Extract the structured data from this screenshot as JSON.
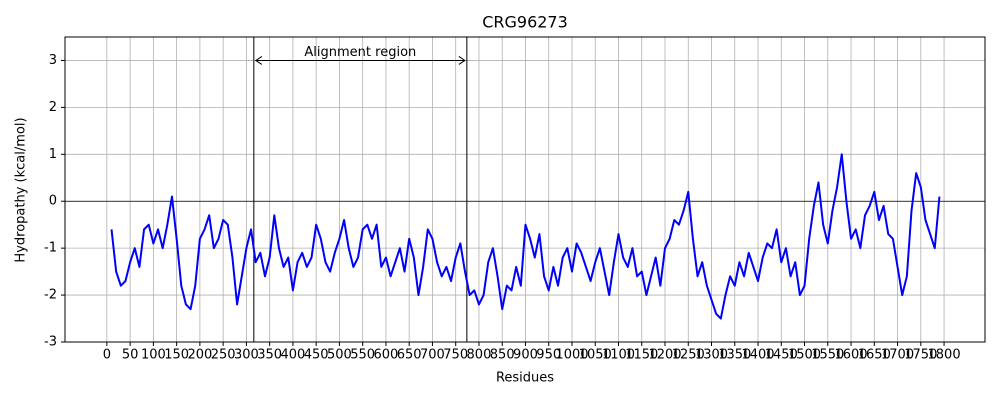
{
  "chart_data": {
    "type": "line",
    "title": "CRG96273",
    "xlabel": "Residues",
    "ylabel": "Hydropathy (kcal/mol)",
    "annotation": "Alignment region",
    "alignment_region": [
      316,
      774
    ],
    "arrow_y": 3,
    "hline": 0,
    "xlim": [
      -90,
      1888
    ],
    "ylim": [
      -3,
      3.5
    ],
    "grid": true,
    "xticks": [
      0,
      50,
      100,
      150,
      200,
      250,
      300,
      350,
      400,
      450,
      500,
      550,
      600,
      650,
      700,
      750,
      800,
      850,
      900,
      950,
      1000,
      1050,
      1100,
      1150,
      1200,
      1250,
      1300,
      1350,
      1400,
      1450,
      1500,
      1550,
      1600,
      1650,
      1700,
      1750,
      1800
    ],
    "yticks": [
      -3,
      -2,
      -1,
      0,
      1,
      2,
      3
    ],
    "x": [
      10,
      20,
      30,
      40,
      50,
      60,
      70,
      80,
      90,
      100,
      110,
      120,
      130,
      140,
      150,
      160,
      170,
      180,
      190,
      200,
      210,
      220,
      230,
      240,
      250,
      260,
      270,
      280,
      290,
      300,
      310,
      320,
      330,
      340,
      350,
      360,
      370,
      380,
      390,
      400,
      410,
      420,
      430,
      440,
      450,
      460,
      470,
      480,
      490,
      500,
      510,
      520,
      530,
      540,
      550,
      560,
      570,
      580,
      590,
      600,
      610,
      620,
      630,
      640,
      650,
      660,
      670,
      680,
      690,
      700,
      710,
      720,
      730,
      740,
      750,
      760,
      770,
      780,
      790,
      800,
      810,
      820,
      830,
      840,
      850,
      860,
      870,
      880,
      890,
      900,
      910,
      920,
      930,
      940,
      950,
      960,
      970,
      980,
      990,
      1000,
      1010,
      1020,
      1030,
      1040,
      1050,
      1060,
      1070,
      1080,
      1090,
      1100,
      1110,
      1120,
      1130,
      1140,
      1150,
      1160,
      1170,
      1180,
      1190,
      1200,
      1210,
      1220,
      1230,
      1240,
      1250,
      1260,
      1270,
      1280,
      1290,
      1300,
      1310,
      1320,
      1330,
      1340,
      1350,
      1360,
      1370,
      1380,
      1390,
      1400,
      1410,
      1420,
      1430,
      1440,
      1450,
      1460,
      1470,
      1480,
      1490,
      1500,
      1510,
      1520,
      1530,
      1540,
      1550,
      1560,
      1570,
      1580,
      1590,
      1600,
      1610,
      1620,
      1630,
      1640,
      1650,
      1660,
      1670,
      1680,
      1690,
      1700,
      1710,
      1720,
      1730,
      1740,
      1750,
      1760,
      1770,
      1780,
      1790
    ],
    "series": [
      {
        "color": "#0000ff",
        "values": [
          -0.6,
          -1.5,
          -1.8,
          -1.7,
          -1.3,
          -1.0,
          -1.4,
          -0.6,
          -0.5,
          -0.9,
          -0.6,
          -1.0,
          -0.5,
          0.1,
          -0.8,
          -1.8,
          -2.2,
          -2.3,
          -1.8,
          -0.8,
          -0.6,
          -0.3,
          -1.0,
          -0.8,
          -0.4,
          -0.5,
          -1.2,
          -2.2,
          -1.6,
          -1.0,
          -0.6,
          -1.3,
          -1.1,
          -1.6,
          -1.2,
          -0.3,
          -1.0,
          -1.4,
          -1.2,
          -1.9,
          -1.3,
          -1.1,
          -1.4,
          -1.2,
          -0.5,
          -0.8,
          -1.3,
          -1.5,
          -1.1,
          -0.8,
          -0.4,
          -1.0,
          -1.4,
          -1.2,
          -0.6,
          -0.5,
          -0.8,
          -0.5,
          -1.4,
          -1.2,
          -1.6,
          -1.3,
          -1.0,
          -1.5,
          -0.8,
          -1.2,
          -2.0,
          -1.4,
          -0.6,
          -0.8,
          -1.3,
          -1.6,
          -1.4,
          -1.7,
          -1.2,
          -0.9,
          -1.5,
          -2.0,
          -1.9,
          -2.2,
          -2.0,
          -1.3,
          -1.0,
          -1.6,
          -2.3,
          -1.8,
          -1.9,
          -1.4,
          -1.8,
          -0.5,
          -0.8,
          -1.2,
          -0.7,
          -1.6,
          -1.9,
          -1.4,
          -1.8,
          -1.2,
          -1.0,
          -1.5,
          -0.9,
          -1.1,
          -1.4,
          -1.7,
          -1.3,
          -1.0,
          -1.5,
          -2.0,
          -1.3,
          -0.7,
          -1.2,
          -1.4,
          -1.0,
          -1.6,
          -1.5,
          -2.0,
          -1.6,
          -1.2,
          -1.8,
          -1.0,
          -0.8,
          -0.4,
          -0.5,
          -0.2,
          0.2,
          -0.8,
          -1.6,
          -1.3,
          -1.8,
          -2.1,
          -2.4,
          -2.5,
          -2.0,
          -1.6,
          -1.8,
          -1.3,
          -1.6,
          -1.1,
          -1.4,
          -1.7,
          -1.2,
          -0.9,
          -1.0,
          -0.6,
          -1.3,
          -1.0,
          -1.6,
          -1.3,
          -2.0,
          -1.8,
          -0.8,
          -0.1,
          0.4,
          -0.5,
          -0.9,
          -0.2,
          0.3,
          1.0,
          0.0,
          -0.8,
          -0.6,
          -1.0,
          -0.3,
          -0.1,
          0.2,
          -0.4,
          -0.1,
          -0.7,
          -0.8,
          -1.4,
          -2.0,
          -1.6,
          -0.2,
          0.6,
          0.3,
          -0.4,
          -0.7,
          -1.0,
          0.1
        ]
      }
    ]
  }
}
